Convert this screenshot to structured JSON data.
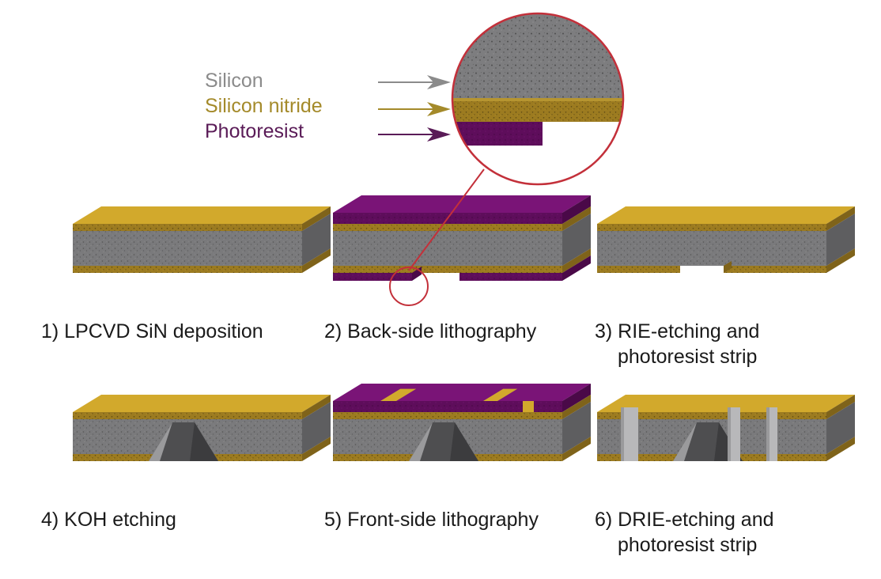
{
  "legend": [
    {
      "label": "Silicon",
      "color": "#8b8b8b"
    },
    {
      "label": "Silicon nitride",
      "color": "#a48a2a"
    },
    {
      "label": "Photoresist",
      "color": "#5a1b57"
    }
  ],
  "materials": {
    "silicon": {
      "front": "#7a7a7c",
      "side": "#5e5e60",
      "speck": "#4a4a4a"
    },
    "nitride": {
      "top": "#d2a92c",
      "front": "#9c7b20",
      "side": "#7f631a",
      "speck": "#5d4a14"
    },
    "photoresist": {
      "top": "#7a1477",
      "front": "#5e0d5b",
      "side": "#4a0948"
    },
    "cavity": {
      "light": "#b8b8ba",
      "mid": "#9a9a9c",
      "dark": "#4e4e50"
    }
  },
  "callout_color": "#c3303a",
  "steps": [
    {
      "line1": "1) LPCVD SiN deposition",
      "line2": ""
    },
    {
      "line1": "2) Back-side lithography",
      "line2": ""
    },
    {
      "line1": "3) RIE-etching and",
      "line2": "photoresist strip"
    },
    {
      "line1": "4) KOH etching",
      "line2": ""
    },
    {
      "line1": "5) Front-side lithography",
      "line2": ""
    },
    {
      "line1": "6) DRIE-etching and",
      "line2": "photoresist strip"
    }
  ]
}
